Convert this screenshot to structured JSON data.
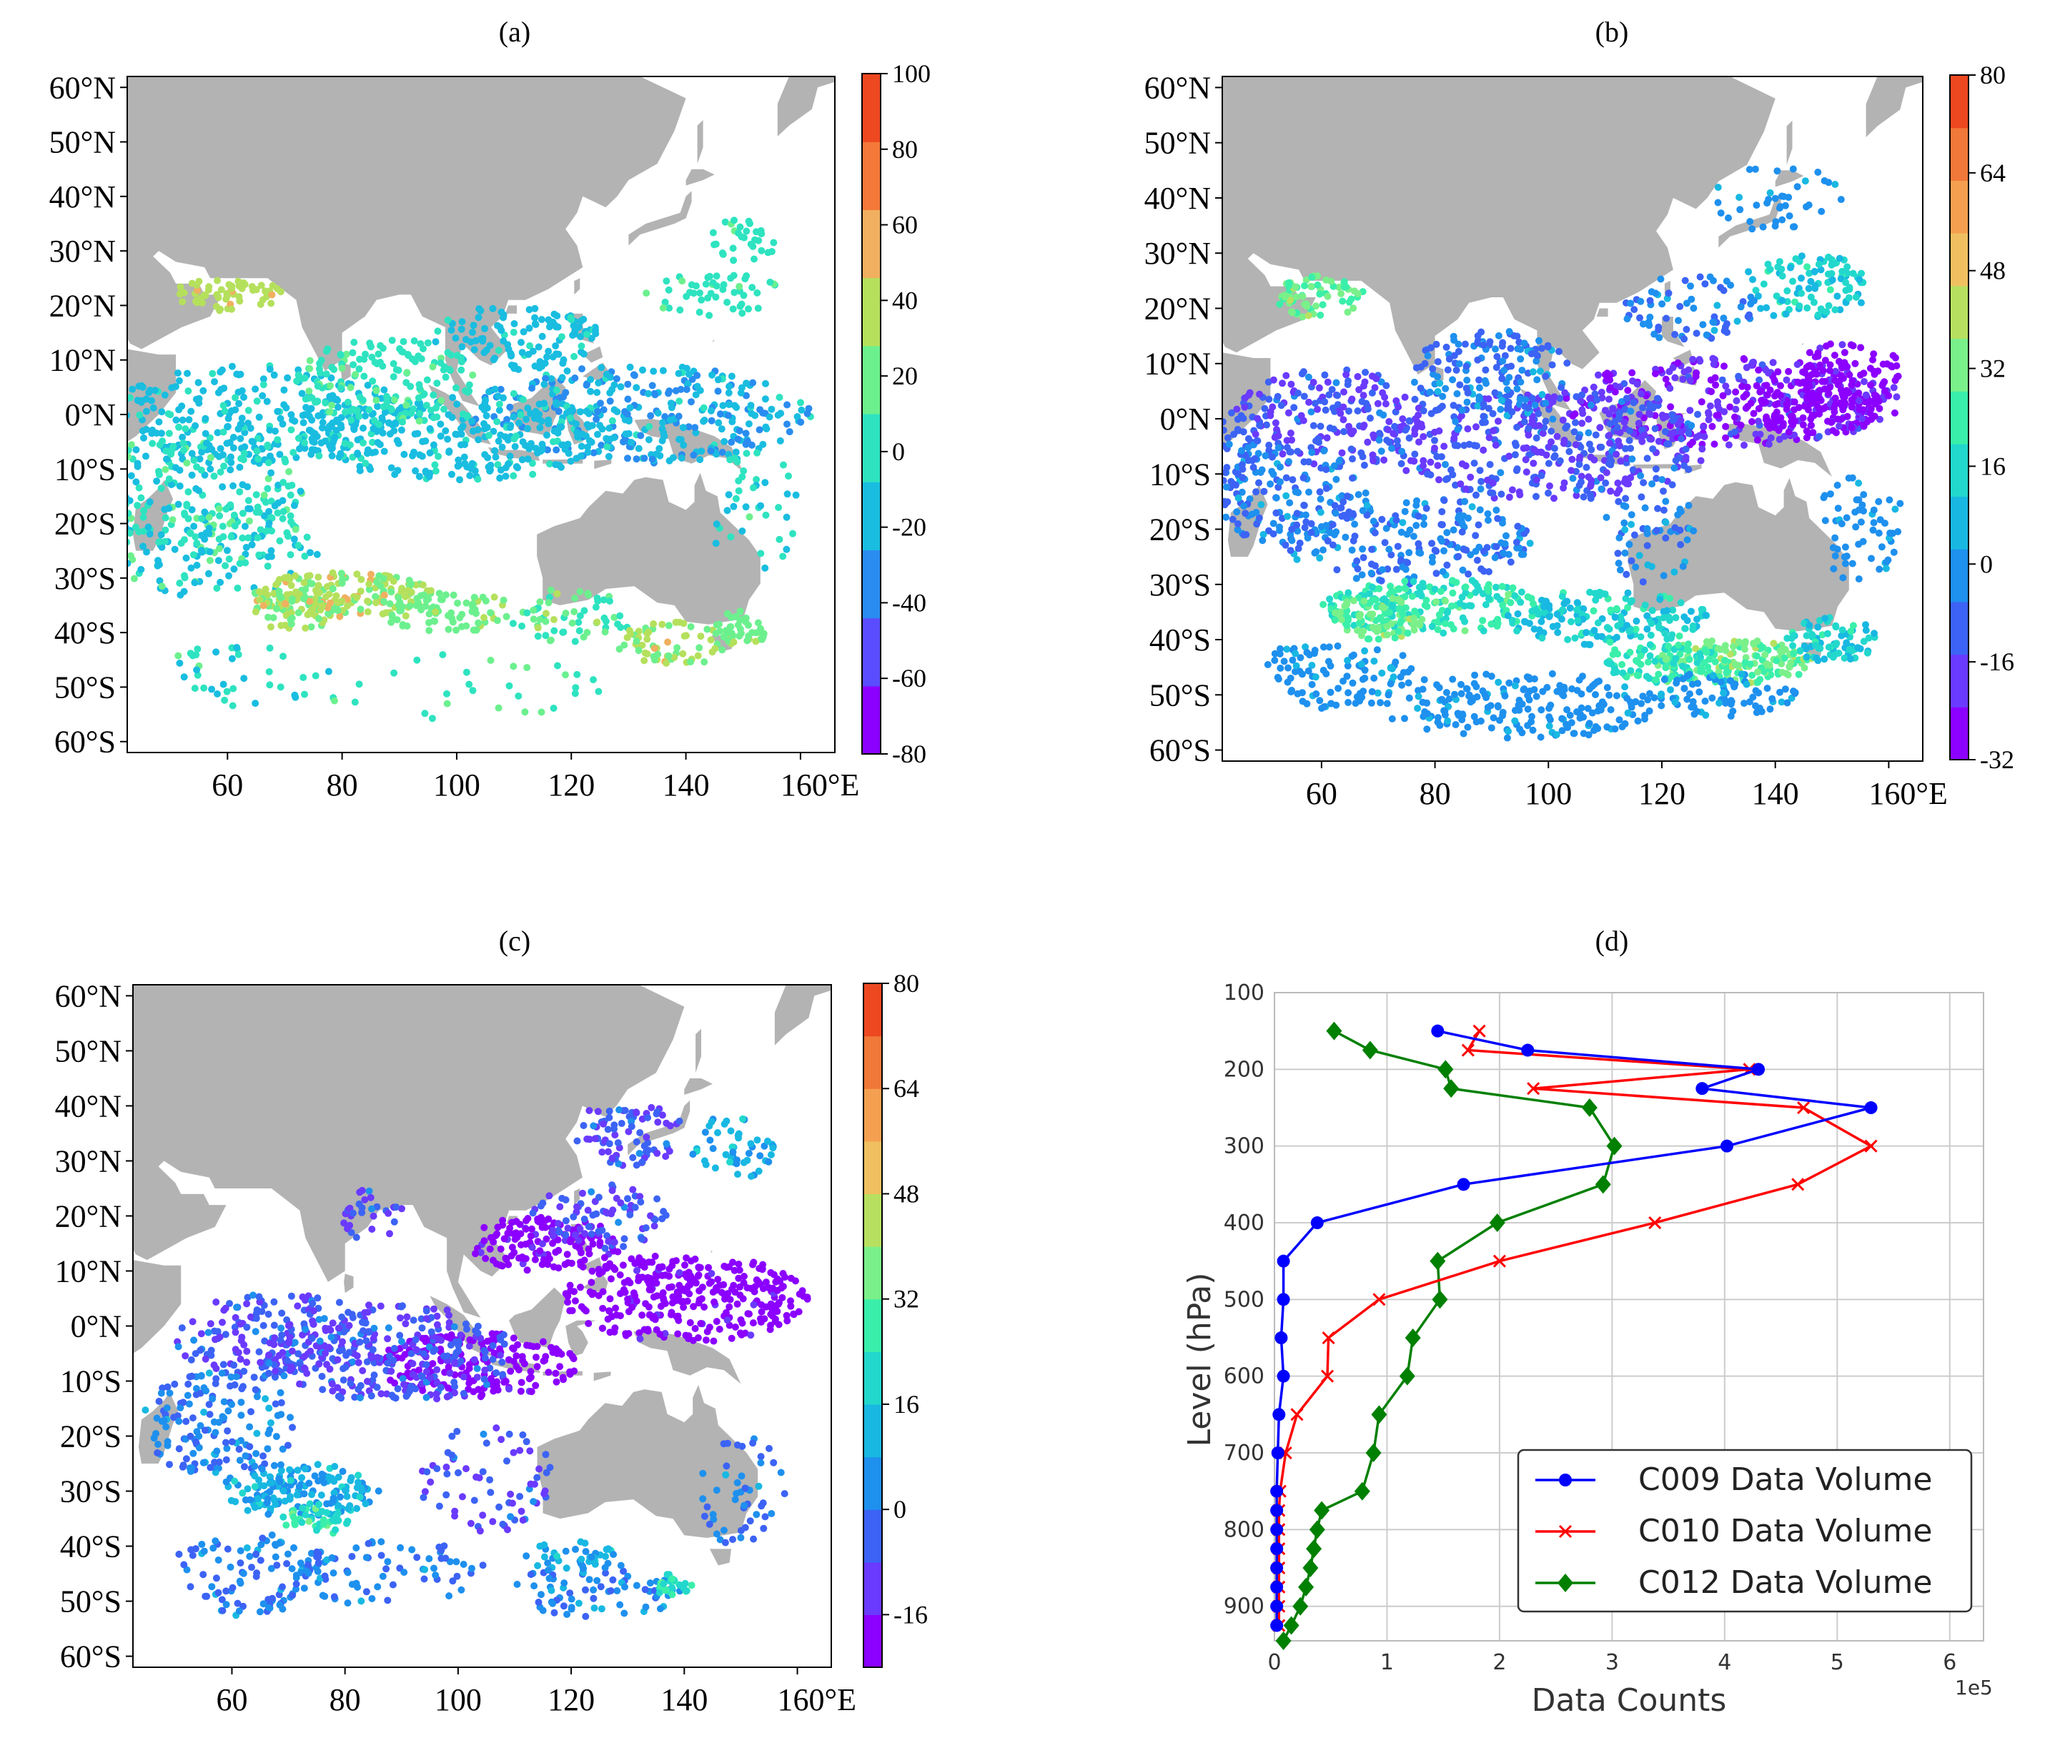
{
  "maps": [
    {
      "id": "a",
      "title": "(a)",
      "lat_ticks": [
        "60°N",
        "50°N",
        "40°N",
        "30°N",
        "20°N",
        "10°N",
        "0°N",
        "10°S",
        "20°S",
        "30°S",
        "40°S",
        "50°S",
        "60°S"
      ],
      "lon_ticks": [
        "60",
        "80",
        "100",
        "120",
        "140",
        "160°E"
      ],
      "colorbar_ticks": [
        "100",
        "80",
        "60",
        "40",
        "20",
        "0",
        "-20",
        "-40",
        "-60",
        "-80"
      ],
      "colorbar_colors": [
        "#8b00ff",
        "#5a4dff",
        "#2a8cf0",
        "#19bde0",
        "#2ee3c0",
        "#6cf08e",
        "#b5e05c",
        "#f0b060",
        "#f47838",
        "#ee4820"
      ]
    },
    {
      "id": "b",
      "title": "(b)",
      "lat_ticks": [
        "60°N",
        "50°N",
        "40°N",
        "30°N",
        "20°N",
        "10°N",
        "0°N",
        "10°S",
        "20°S",
        "30°S",
        "40°S",
        "50°S",
        "60°S"
      ],
      "lon_ticks": [
        "60",
        "80",
        "100",
        "120",
        "140",
        "160°E"
      ],
      "colorbar_ticks": [
        "80",
        "64",
        "48",
        "32",
        "16",
        "0",
        "-16",
        "-32"
      ],
      "colorbar_colors": [
        "#8b00ff",
        "#6a3aff",
        "#3c63f5",
        "#1e90ee",
        "#18b8e2",
        "#22d8cc",
        "#3aefaa",
        "#7af08a",
        "#b8e060",
        "#f0c060",
        "#f4a050",
        "#f07838",
        "#ee4820"
      ]
    },
    {
      "id": "c",
      "title": "(c)",
      "lat_ticks": [
        "60°N",
        "50°N",
        "40°N",
        "30°N",
        "20°N",
        "10°N",
        "0°N",
        "10°S",
        "20°S",
        "30°S",
        "40°S",
        "50°S",
        "60°S"
      ],
      "lon_ticks": [
        "60",
        "80",
        "100",
        "120",
        "140",
        "160°E"
      ],
      "colorbar_ticks": [
        "80",
        "64",
        "48",
        "32",
        "16",
        "0",
        "-16"
      ],
      "colorbar_colors": [
        "#8b00ff",
        "#6a3aff",
        "#3c63f5",
        "#1e90ee",
        "#18b8e2",
        "#22d8cc",
        "#3aefaa",
        "#7af08a",
        "#b8e060",
        "#f0c060",
        "#f4a050",
        "#f07838",
        "#ee4820"
      ]
    }
  ],
  "chart_data": {
    "type": "line",
    "title": "(d)",
    "xlabel": "Data Counts",
    "ylabel": "Level (hPa)",
    "x_scale_label": "1e5",
    "xlim": [
      0,
      6.3
    ],
    "ylim": [
      945,
      100
    ],
    "x_ticks": [
      "0",
      "1",
      "2",
      "3",
      "4",
      "5",
      "6"
    ],
    "y_ticks": [
      "100",
      "200",
      "300",
      "400",
      "500",
      "600",
      "700",
      "800",
      "900"
    ],
    "grid": true,
    "legend_position": "lower-right",
    "series": [
      {
        "name": "C009 Data Volume",
        "color": "#0000ff",
        "marker": "circle",
        "points": [
          [
            1.45,
            150
          ],
          [
            2.25,
            175
          ],
          [
            4.3,
            200
          ],
          [
            3.8,
            225
          ],
          [
            5.3,
            250
          ],
          [
            4.02,
            300
          ],
          [
            1.68,
            350
          ],
          [
            0.38,
            400
          ],
          [
            0.08,
            450
          ],
          [
            0.08,
            500
          ],
          [
            0.06,
            550
          ],
          [
            0.08,
            600
          ],
          [
            0.04,
            650
          ],
          [
            0.03,
            700
          ],
          [
            0.02,
            750
          ],
          [
            0.02,
            775
          ],
          [
            0.02,
            800
          ],
          [
            0.02,
            825
          ],
          [
            0.02,
            850
          ],
          [
            0.02,
            875
          ],
          [
            0.02,
            900
          ],
          [
            0.02,
            925
          ]
        ]
      },
      {
        "name": "C010 Data Volume",
        "color": "#ff0000",
        "marker": "x",
        "points": [
          [
            1.82,
            150
          ],
          [
            1.72,
            175
          ],
          [
            4.22,
            200
          ],
          [
            2.3,
            225
          ],
          [
            4.7,
            250
          ],
          [
            5.3,
            300
          ],
          [
            4.65,
            350
          ],
          [
            3.38,
            400
          ],
          [
            2.0,
            450
          ],
          [
            0.93,
            500
          ],
          [
            0.48,
            550
          ],
          [
            0.47,
            600
          ],
          [
            0.2,
            650
          ],
          [
            0.1,
            700
          ],
          [
            0.05,
            750
          ],
          [
            0.04,
            775
          ],
          [
            0.04,
            800
          ],
          [
            0.04,
            825
          ],
          [
            0.04,
            850
          ],
          [
            0.04,
            875
          ],
          [
            0.04,
            900
          ],
          [
            0.04,
            925
          ]
        ]
      },
      {
        "name": "C012 Data Volume",
        "color": "#008000",
        "marker": "diamond",
        "points": [
          [
            0.53,
            150
          ],
          [
            0.85,
            175
          ],
          [
            1.52,
            200
          ],
          [
            1.57,
            225
          ],
          [
            2.8,
            250
          ],
          [
            3.02,
            300
          ],
          [
            2.92,
            350
          ],
          [
            1.98,
            400
          ],
          [
            1.45,
            450
          ],
          [
            1.47,
            500
          ],
          [
            1.23,
            550
          ],
          [
            1.18,
            600
          ],
          [
            0.93,
            650
          ],
          [
            0.88,
            700
          ],
          [
            0.78,
            750
          ],
          [
            0.42,
            775
          ],
          [
            0.38,
            800
          ],
          [
            0.35,
            825
          ],
          [
            0.32,
            850
          ],
          [
            0.28,
            875
          ],
          [
            0.23,
            900
          ],
          [
            0.15,
            925
          ],
          [
            0.08,
            945
          ]
        ]
      }
    ]
  }
}
